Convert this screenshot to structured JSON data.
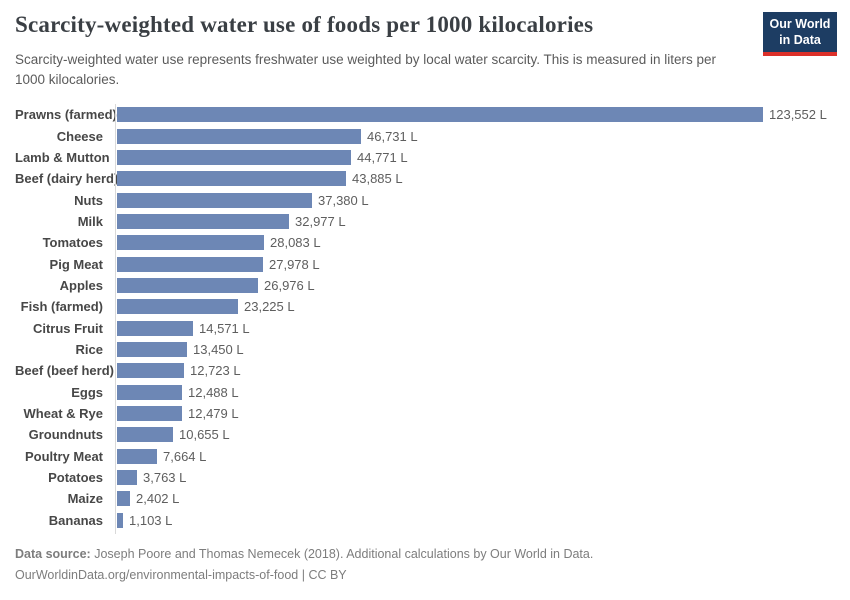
{
  "header": {
    "title": "Scarcity-weighted water use of foods per 1000 kilocalories",
    "logo": {
      "line1": "Our World",
      "line2": "in Data",
      "bg_color": "#1d3d63",
      "accent_color": "#dc3029"
    }
  },
  "subtitle": "Scarcity-weighted water use represents freshwater use weighted by local water scarcity. This is measured in liters per 1000 kilocalories.",
  "chart_data": {
    "type": "bar",
    "orientation": "horizontal",
    "title": "Scarcity-weighted water use of foods per 1000 kilocalories",
    "xlabel": "",
    "ylabel": "",
    "xlim": [
      0,
      123552
    ],
    "grid": false,
    "legend": "none",
    "bar_color": "#6d87b5",
    "unit": "L",
    "categories": [
      "Prawns (farmed)",
      "Cheese",
      "Lamb & Mutton",
      "Beef (dairy herd)",
      "Nuts",
      "Milk",
      "Tomatoes",
      "Pig Meat",
      "Apples",
      "Fish (farmed)",
      "Citrus Fruit",
      "Rice",
      "Beef (beef herd)",
      "Eggs",
      "Wheat & Rye",
      "Groundnuts",
      "Poultry Meat",
      "Potatoes",
      "Maize",
      "Bananas"
    ],
    "values": [
      123552,
      46731,
      44771,
      43885,
      37380,
      32977,
      28083,
      27978,
      26976,
      23225,
      14571,
      13450,
      12723,
      12488,
      12479,
      10655,
      7664,
      3763,
      2402,
      1103
    ],
    "value_labels": [
      "123,552 L",
      "46,731 L",
      "44,771 L",
      "43,885 L",
      "37,380 L",
      "32,977 L",
      "28,083 L",
      "27,978 L",
      "26,976 L",
      "23,225 L",
      "14,571 L",
      "13,450 L",
      "12,723 L",
      "12,488 L",
      "12,479 L",
      "10,655 L",
      "7,664 L",
      "3,763 L",
      "2,402 L",
      "1,103 L"
    ]
  },
  "footer": {
    "datasource_label": "Data source:",
    "datasource_text": " Joseph Poore and Thomas Nemecek (2018). Additional calculations by Our World in Data.",
    "link_text": "OurWorldinData.org/environmental-impacts-of-food",
    "separator": " | ",
    "license": "CC BY"
  }
}
